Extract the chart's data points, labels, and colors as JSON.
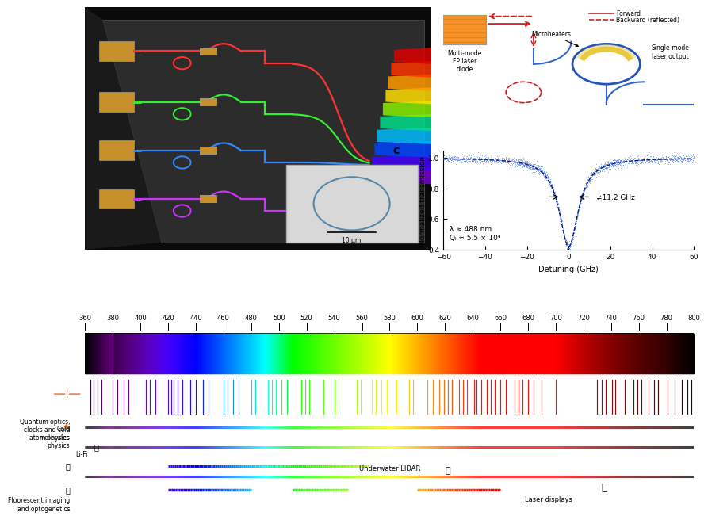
{
  "xlim": [
    360,
    800
  ],
  "spectrum_ticks": [
    360,
    380,
    400,
    420,
    440,
    460,
    480,
    500,
    520,
    540,
    560,
    580,
    600,
    620,
    640,
    660,
    680,
    700,
    720,
    740,
    760,
    780,
    800
  ],
  "quantum_wavelengths": [
    364,
    366,
    369,
    372,
    380,
    383,
    388,
    391,
    404,
    407,
    411,
    420,
    422,
    424,
    427,
    430,
    436,
    440,
    445,
    449,
    460,
    463,
    467,
    471,
    480,
    483,
    492,
    495,
    498,
    502,
    506,
    516,
    519,
    522,
    532,
    540,
    543,
    556,
    559,
    567,
    570,
    574,
    578,
    585,
    594,
    597,
    607,
    611,
    616,
    619,
    622,
    625,
    630,
    633,
    636,
    641,
    643,
    646,
    650,
    653,
    656,
    660,
    664,
    670,
    673,
    676,
    680,
    684,
    690,
    700,
    730,
    733,
    736,
    741,
    743,
    750,
    756,
    759,
    762,
    767,
    771,
    774,
    781,
    786,
    791,
    795,
    798
  ],
  "panel_c": {
    "xlabel": "Detuning (GHz)",
    "ylabel": "Normalized transmission",
    "xlim": [
      -60,
      60
    ],
    "ylim": [
      0.4,
      1.05
    ],
    "yticks": [
      0.4,
      0.6,
      0.8,
      1.0
    ],
    "xticks": [
      -60,
      -40,
      -20,
      0,
      20,
      40,
      60
    ],
    "label_lambda": "λ ≈ 488 nm",
    "label_Q": "Qₗ ≈ 5.5 × 10⁴",
    "annotation": "≠11.2 GHz",
    "linewidth_fit": 11.2,
    "depth": 0.58,
    "panel_label": "c"
  },
  "chip_colors": {
    "bg_dark": "#111111",
    "panel_gray": "#2e2e2e",
    "laser_red": "#ff3333",
    "laser_green": "#33ee33",
    "laser_blue": "#3388ff",
    "laser_violet": "#cc33ff",
    "gold": "#c8902a"
  },
  "diagram": {
    "bg": "#cce4f5",
    "border": "#7aabcc",
    "laser_orange": "#f5922a",
    "ring_blue": "#2255bb",
    "heater_gold": "#e8c840",
    "arrow_red": "#cc2222",
    "waveguide_blue": "#3366cc"
  }
}
